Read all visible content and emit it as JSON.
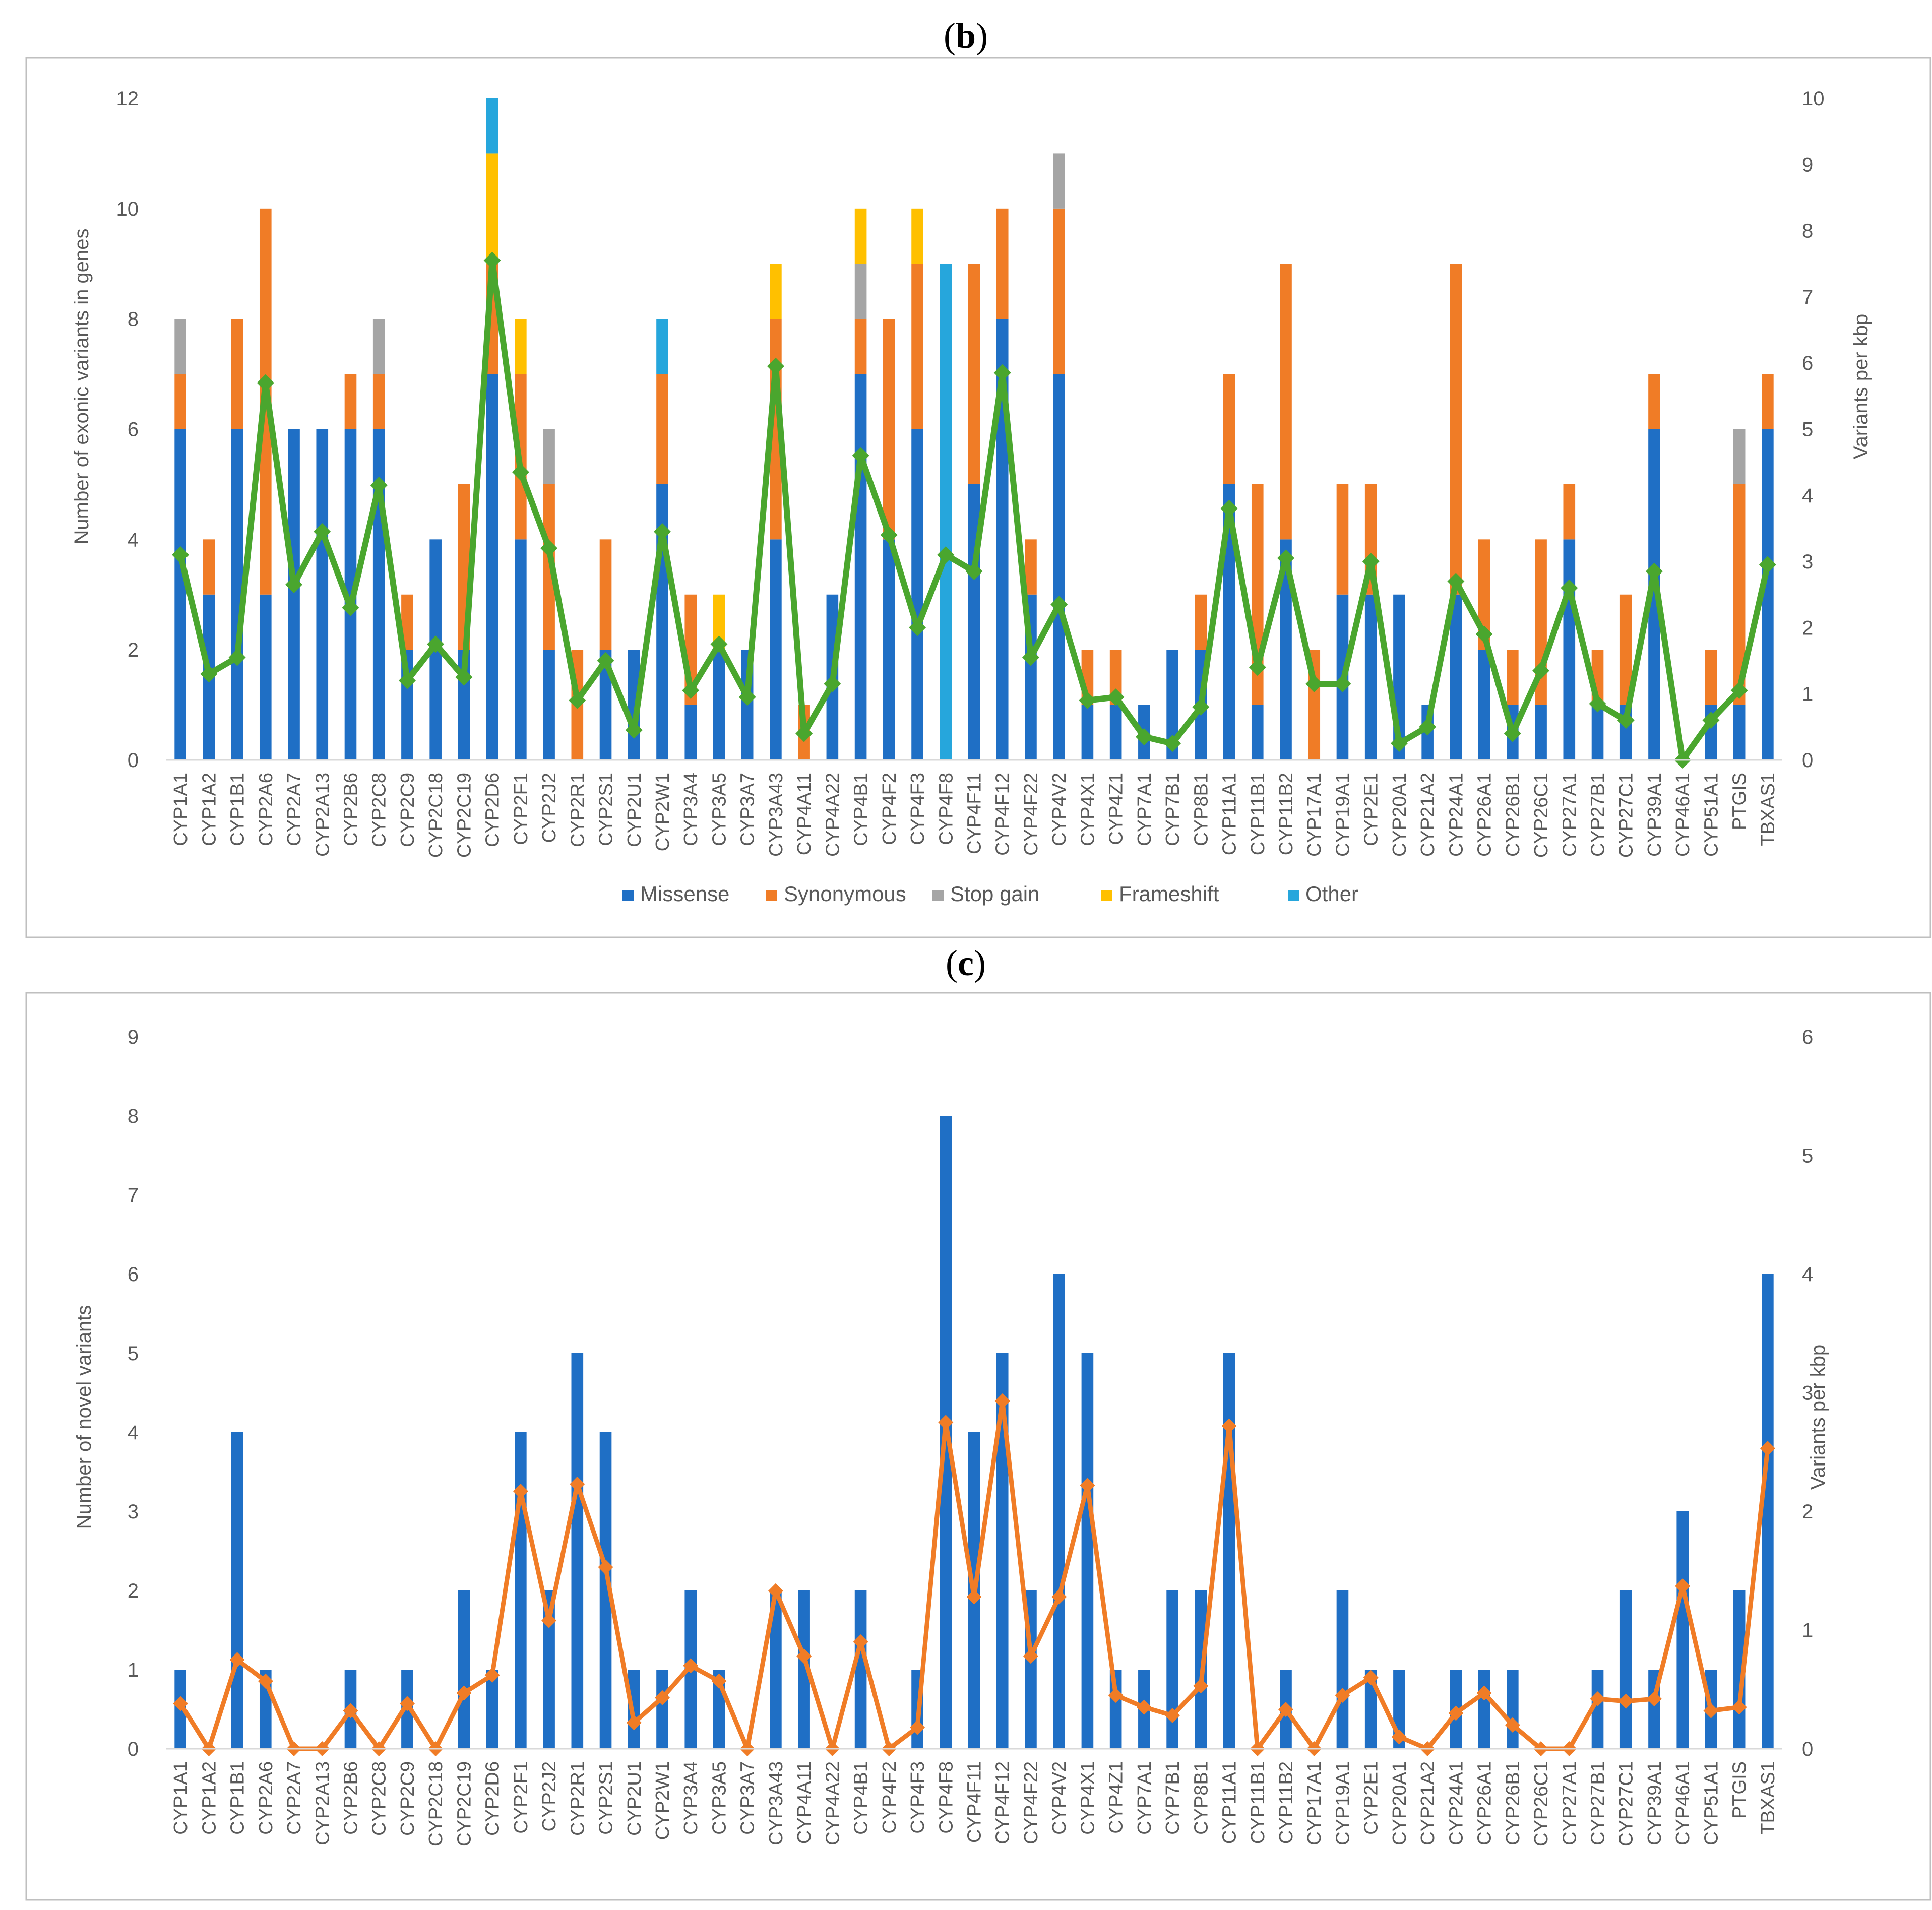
{
  "colors": {
    "missense": "#1f6fc5",
    "synonymous": "#f07c26",
    "stop_gain": "#a5a5a5",
    "frameshift": "#ffc000",
    "other": "#26a6dc",
    "line_b": "#4aa62e",
    "bar_c": "#1f6fc5",
    "line_c": "#f07c26",
    "axis": "#d9d9d9",
    "frame": "#bfbfbf"
  },
  "chart_data": [
    {
      "panel": "b",
      "panel_label_prefix": "(",
      "panel_label_letter": "b",
      "panel_label_suffix": ")",
      "type": "bar",
      "stacked": true,
      "categories": [
        "CYP1A1",
        "CYP1A2",
        "CYP1B1",
        "CYP2A6",
        "CYP2A7",
        "CYP2A13",
        "CYP2B6",
        "CYP2C8",
        "CYP2C9",
        "CYP2C18",
        "CYP2C19",
        "CYP2D6",
        "CYP2F1",
        "CYP2J2",
        "CYP2R1",
        "CYP2S1",
        "CYP2U1",
        "CYP2W1",
        "CYP3A4",
        "CYP3A5",
        "CYP3A7",
        "CYP3A43",
        "CYP4A11",
        "CYP4A22",
        "CYP4B1",
        "CYP4F2",
        "CYP4F3",
        "CYP4F8",
        "CYP4F11",
        "CYP4F12",
        "CYP4F22",
        "CYP4V2",
        "CYP4X1",
        "CYP4Z1",
        "CYP7A1",
        "CYP7B1",
        "CYP8B1",
        "CYP11A1",
        "CYP11B1",
        "CYP11B2",
        "CYP17A1",
        "CYP19A1",
        "CYP2E1",
        "CYP20A1",
        "CYP21A2",
        "CYP24A1",
        "CYP26A1",
        "CYP26B1",
        "CYP26C1",
        "CYP27A1",
        "CYP27B1",
        "CYP27C1",
        "CYP39A1",
        "CYP46A1",
        "CYP51A1",
        "PTGIS",
        "TBXAS1"
      ],
      "series": [
        {
          "name": "Missense",
          "key": "missense",
          "values": [
            6,
            3,
            6,
            3,
            6,
            6,
            6,
            6,
            2,
            4,
            2,
            7,
            4,
            2,
            0,
            2,
            2,
            5,
            1,
            2,
            2,
            4,
            0,
            3,
            7,
            4,
            6,
            0,
            5,
            8,
            3,
            7,
            1,
            1,
            1,
            2,
            2,
            5,
            1,
            4,
            0,
            3,
            3,
            3,
            1,
            3,
            2,
            1,
            1,
            4,
            1,
            1,
            6,
            0,
            1,
            1,
            6
          ]
        },
        {
          "name": "Synonymous",
          "key": "synonymous",
          "values": [
            1,
            1,
            2,
            7,
            0,
            0,
            1,
            1,
            1,
            0,
            3,
            2,
            3,
            3,
            2,
            2,
            0,
            2,
            2,
            0,
            0,
            4,
            1,
            0,
            1,
            4,
            3,
            0,
            4,
            2,
            1,
            3,
            1,
            1,
            0,
            0,
            1,
            2,
            4,
            5,
            2,
            2,
            2,
            0,
            0,
            6,
            2,
            1,
            3,
            1,
            1,
            2,
            1,
            0,
            1,
            4,
            1
          ]
        },
        {
          "name": "Stop gain",
          "key": "stop_gain",
          "values": [
            1,
            0,
            0,
            0,
            0,
            0,
            0,
            1,
            0,
            0,
            0,
            0,
            0,
            1,
            0,
            0,
            0,
            0,
            0,
            0,
            0,
            0,
            0,
            0,
            1,
            0,
            0,
            0,
            0,
            0,
            0,
            1,
            0,
            0,
            0,
            0,
            0,
            0,
            0,
            0,
            0,
            0,
            0,
            0,
            0,
            0,
            0,
            0,
            0,
            0,
            0,
            0,
            0,
            0,
            0,
            1,
            0
          ]
        },
        {
          "name": "Frameshift",
          "key": "frameshift",
          "values": [
            0,
            0,
            0,
            0,
            0,
            0,
            0,
            0,
            0,
            0,
            0,
            2,
            1,
            0,
            0,
            0,
            0,
            0,
            0,
            1,
            0,
            1,
            0,
            0,
            1,
            0,
            1,
            0,
            0,
            0,
            0,
            0,
            0,
            0,
            0,
            0,
            0,
            0,
            0,
            0,
            0,
            0,
            0,
            0,
            0,
            0,
            0,
            0,
            0,
            0,
            0,
            0,
            0,
            0,
            0,
            0,
            0
          ]
        },
        {
          "name": "Other",
          "key": "other",
          "values": [
            0,
            0,
            0,
            0,
            0,
            0,
            0,
            0,
            0,
            0,
            0,
            1,
            0,
            0,
            0,
            0,
            0,
            1,
            0,
            0,
            0,
            0,
            0,
            0,
            0,
            0,
            0,
            9,
            0,
            0,
            0,
            0,
            0,
            0,
            0,
            0,
            0,
            0,
            0,
            0,
            0,
            0,
            0,
            0,
            0,
            0,
            0,
            0,
            0,
            0,
            0,
            0,
            0,
            0,
            0,
            0,
            0
          ]
        }
      ],
      "line": {
        "name": "Variants per kbp",
        "axis": "right",
        "values": [
          3.1,
          1.3,
          1.55,
          5.7,
          2.65,
          3.45,
          2.3,
          4.15,
          1.2,
          1.75,
          1.25,
          7.55,
          4.35,
          3.2,
          0.9,
          1.5,
          0.45,
          3.45,
          1.05,
          1.75,
          0.95,
          5.95,
          0.4,
          1.15,
          4.6,
          3.4,
          2.0,
          3.1,
          2.85,
          5.85,
          1.55,
          2.35,
          0.9,
          0.95,
          0.35,
          0.25,
          0.8,
          3.8,
          1.4,
          3.05,
          1.15,
          1.15,
          3.0,
          0.25,
          0.5,
          2.7,
          1.9,
          0.4,
          1.35,
          2.6,
          0.85,
          0.6,
          2.85,
          0.0,
          0.6,
          1.05,
          2.95
        ]
      },
      "ylabel": "Number of exonic variants in genes",
      "ylabel_right": "Variants per kbp",
      "ylim": [
        0,
        12
      ],
      "yticks": [
        "0",
        "2",
        "4",
        "6",
        "8",
        "10",
        "12"
      ],
      "ylim_right": [
        0,
        10
      ],
      "yticks_right": [
        "0",
        "1",
        "2",
        "3",
        "4",
        "5",
        "6",
        "7",
        "8",
        "9",
        "10"
      ],
      "legend": [
        "Missense",
        "Synonymous",
        "Stop gain",
        "Frameshift",
        "Other"
      ],
      "legend_position": "bottom",
      "grid": false
    },
    {
      "panel": "c",
      "panel_label_prefix": "(",
      "panel_label_letter": "c",
      "panel_label_suffix": ")",
      "type": "bar",
      "stacked": false,
      "categories": [
        "CYP1A1",
        "CYP1A2",
        "CYP1B1",
        "CYP2A6",
        "CYP2A7",
        "CYP2A13",
        "CYP2B6",
        "CYP2C8",
        "CYP2C9",
        "CYP2C18",
        "CYP2C19",
        "CYP2D6",
        "CYP2F1",
        "CYP2J2",
        "CYP2R1",
        "CYP2S1",
        "CYP2U1",
        "CYP2W1",
        "CYP3A4",
        "CYP3A5",
        "CYP3A7",
        "CYP3A43",
        "CYP4A11",
        "CYP4A22",
        "CYP4B1",
        "CYP4F2",
        "CYP4F3",
        "CYP4F8",
        "CYP4F11",
        "CYP4F12",
        "CYP4F22",
        "CYP4V2",
        "CYP4X1",
        "CYP4Z1",
        "CYP7A1",
        "CYP7B1",
        "CYP8B1",
        "CYP11A1",
        "CYP11B1",
        "CYP11B2",
        "CYP17A1",
        "CYP19A1",
        "CYP2E1",
        "CYP20A1",
        "CYP21A2",
        "CYP24A1",
        "CYP26A1",
        "CYP26B1",
        "CYP26C1",
        "CYP27A1",
        "CYP27B1",
        "CYP27C1",
        "CYP39A1",
        "CYP46A1",
        "CYP51A1",
        "PTGIS",
        "TBXAS1"
      ],
      "values": [
        1,
        0,
        4,
        1,
        0,
        0,
        1,
        0,
        1,
        0,
        2,
        1,
        4,
        2,
        5,
        4,
        1,
        1,
        2,
        1,
        0,
        2,
        2,
        0,
        2,
        0,
        1,
        8,
        4,
        5,
        2,
        6,
        5,
        1,
        1,
        2,
        2,
        5,
        0,
        1,
        0,
        2,
        1,
        1,
        0,
        1,
        1,
        1,
        0,
        0,
        1,
        2,
        1,
        3,
        1,
        2,
        6
      ],
      "line": {
        "name": "Variants per kbp",
        "axis": "right",
        "values": [
          0.38,
          0,
          0.75,
          0.57,
          0,
          0,
          0.32,
          0,
          0.38,
          0,
          0.47,
          0.62,
          2.17,
          1.08,
          2.23,
          1.53,
          0.22,
          0.43,
          0.7,
          0.57,
          0,
          1.33,
          0.78,
          0,
          0.9,
          0,
          0.18,
          2.75,
          1.28,
          2.93,
          0.78,
          1.28,
          2.22,
          0.45,
          0.35,
          0.28,
          0.53,
          2.72,
          0,
          0.33,
          0,
          0.45,
          0.6,
          0.1,
          0,
          0.3,
          0.47,
          0.2,
          0,
          0,
          0.42,
          0.4,
          0.42,
          1.37,
          0.32,
          0.35,
          2.53
        ]
      },
      "ylabel": "Number of novel variants",
      "ylabel_right": "Variants per kbp",
      "ylim": [
        0,
        9
      ],
      "yticks": [
        "0",
        "1",
        "2",
        "3",
        "4",
        "5",
        "6",
        "7",
        "8",
        "9"
      ],
      "ylim_right": [
        0,
        6
      ],
      "yticks_right": [
        "0",
        "1",
        "2",
        "3",
        "4",
        "5",
        "6"
      ],
      "grid": false
    }
  ]
}
